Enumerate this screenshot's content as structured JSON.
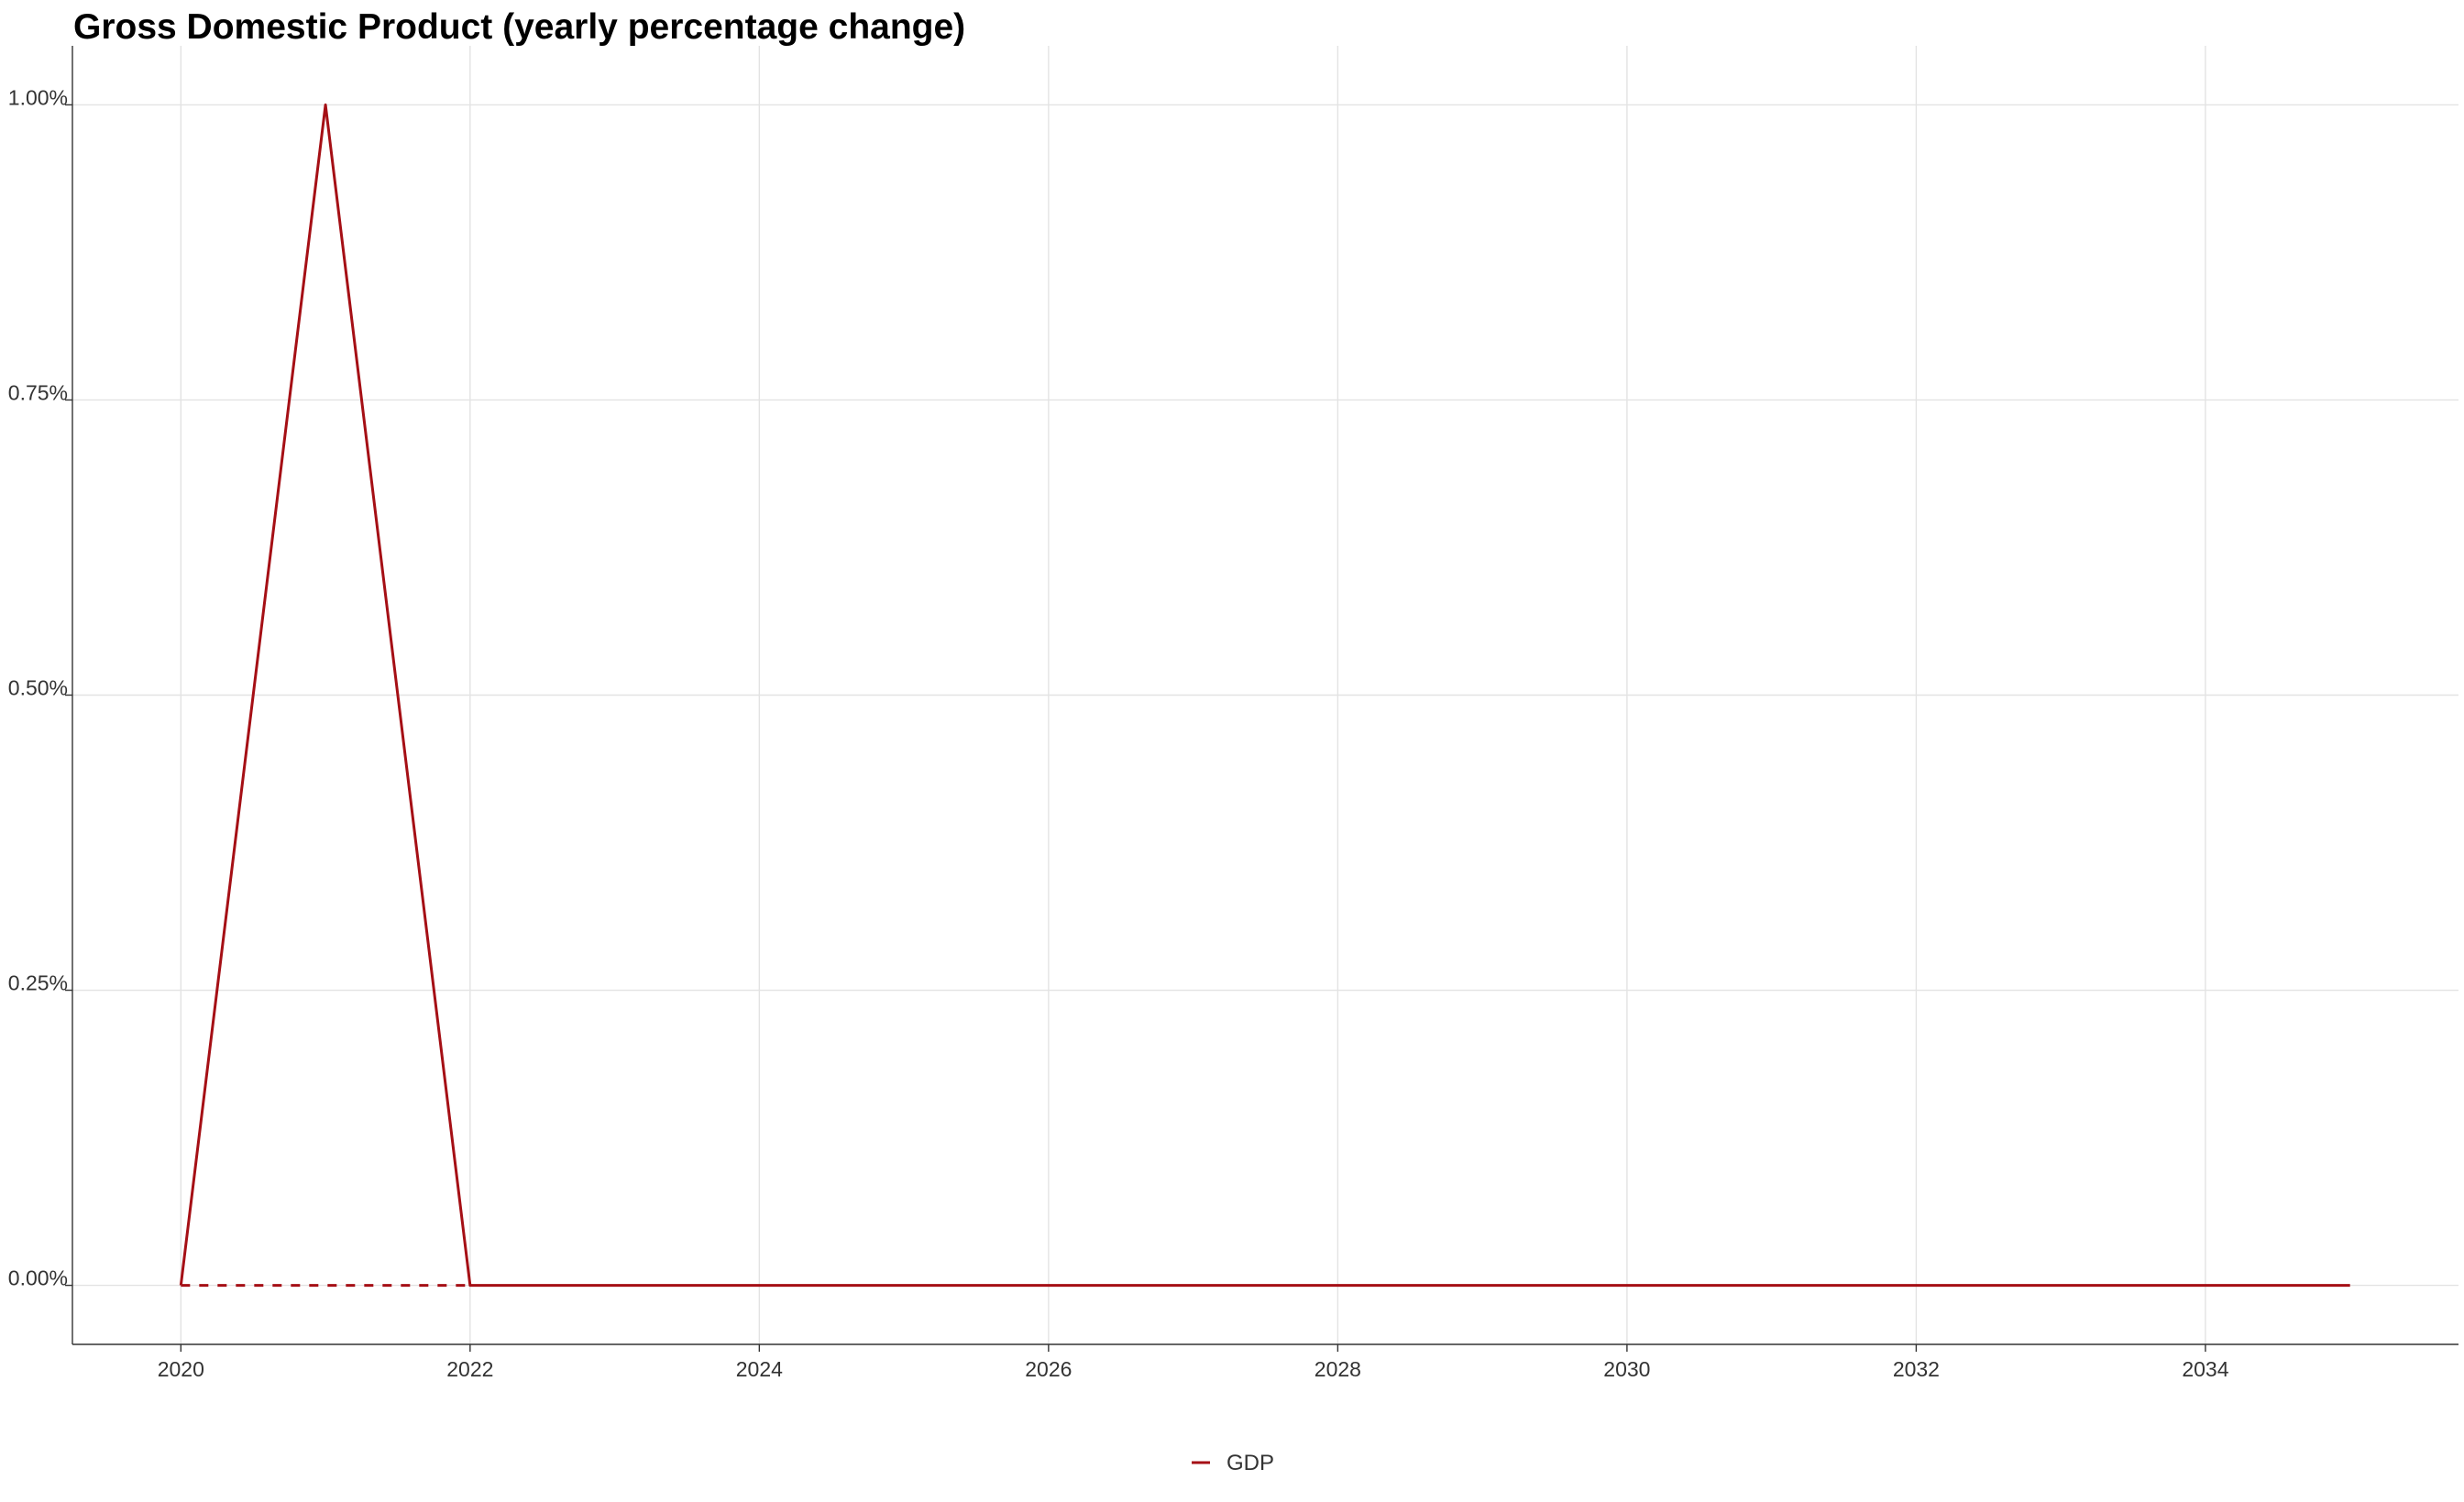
{
  "chart_data": {
    "type": "line",
    "title": "Gross Domestic Product (yearly percentage change)",
    "xlabel": "",
    "ylabel": "",
    "x": [
      2020,
      2021,
      2022,
      2023,
      2024,
      2025,
      2026,
      2027,
      2028,
      2029,
      2030,
      2031,
      2032,
      2033,
      2034,
      2035
    ],
    "series": [
      {
        "name": "GDP",
        "color": "#a50f15",
        "style": "solid",
        "values": [
          0,
          1,
          0,
          0,
          0,
          0,
          0,
          0,
          0,
          0,
          0,
          0,
          0,
          0,
          0,
          0
        ]
      },
      {
        "color": "#a50f15",
        "style": "dashed",
        "x": [
          2020,
          2022
        ],
        "values": [
          0,
          0
        ]
      }
    ],
    "xlim": [
      2019.25,
      2035.75
    ],
    "ylim": [
      -0.05,
      1.05
    ],
    "x_ticks": [
      2020,
      2022,
      2024,
      2026,
      2028,
      2030,
      2032,
      2034
    ],
    "x_tick_labels": [
      "2020",
      "2022",
      "2024",
      "2026",
      "2028",
      "2030",
      "2032",
      "2034"
    ],
    "y_ticks": [
      0,
      0.25,
      0.5,
      0.75,
      1.0
    ],
    "y_tick_labels": [
      "0.00%",
      "0.25%",
      "0.50%",
      "0.75%",
      "1.00%"
    ],
    "grid": true,
    "legend_position": "bottom"
  }
}
